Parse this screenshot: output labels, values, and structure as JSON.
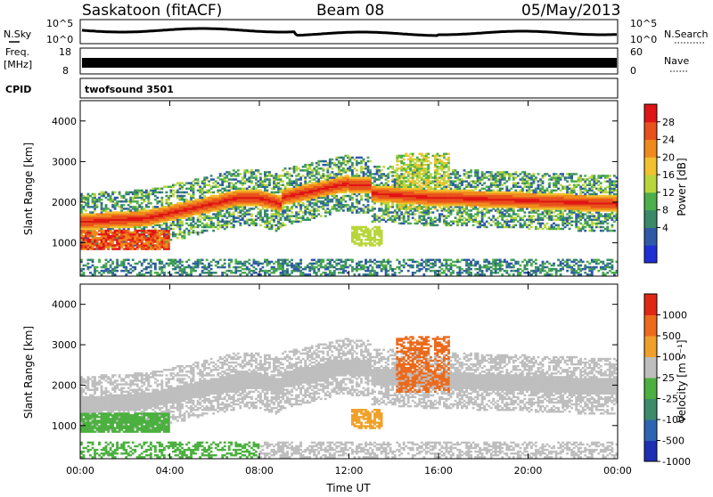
{
  "header": {
    "station": "Saskatoon (fitACF)",
    "beam": "Beam 08",
    "date": "05/May/2013"
  },
  "strips": {
    "nsky_label": "N.Sky",
    "nsearch_label": "N.Search",
    "noise_ticks": [
      "10^5",
      "10^0"
    ],
    "freq_label": "Freq.",
    "freq_unit": "[MHz]",
    "freq_ticks": [
      "18",
      "8"
    ],
    "nave_label": "Nave",
    "nave_ticks": [
      "60",
      "0"
    ],
    "cpid_label": "CPID",
    "cpid_value": "twofsound 3501"
  },
  "colors": {
    "power": [
      "#1f2fd6",
      "#2f5aa8",
      "#3a8a6a",
      "#4caf4a",
      "#b8d63a",
      "#f2c12e",
      "#f08a1c",
      "#e8501c",
      "#e01414"
    ],
    "velocity": [
      "#1e2fb4",
      "#2c64b4",
      "#3c8c6c",
      "#4cb040",
      "#bebebe",
      "#f0a028",
      "#ec6a1c",
      "#e02814"
    ]
  },
  "chart_data": [
    {
      "type": "heatmap",
      "quantity": "Power",
      "ylabel": "Slant Range [km]",
      "colorbar_label": "Power [dB]",
      "colorbar_ticks": [
        "28",
        "24",
        "20",
        "16",
        "12",
        "8",
        "4"
      ],
      "x_ticks": [
        "00:00",
        "04:00",
        "08:00",
        "12:00",
        "16:00",
        "20:00",
        "00:00"
      ],
      "y_ticks": [
        "4000",
        "3000",
        "2000",
        "1000"
      ],
      "ylim": [
        180,
        4500
      ],
      "xlim_hours": [
        0,
        24
      ],
      "grid": false
    },
    {
      "type": "heatmap",
      "quantity": "Velocity",
      "ylabel": "Slant Range [km]",
      "xlabel": "Time UT",
      "colorbar_label": "Velocity [m s⁻¹]",
      "colorbar_ticks": [
        "1000",
        "500",
        "100",
        "25",
        "-25",
        "-100",
        "-500",
        "-1000"
      ],
      "x_ticks": [
        "00:00",
        "04:00",
        "08:00",
        "12:00",
        "16:00",
        "20:00",
        "00:00"
      ],
      "y_ticks": [
        "4000",
        "3000",
        "2000",
        "1000"
      ],
      "ylim": [
        180,
        4500
      ],
      "xlim_hours": [
        0,
        24
      ],
      "grid": false
    }
  ]
}
